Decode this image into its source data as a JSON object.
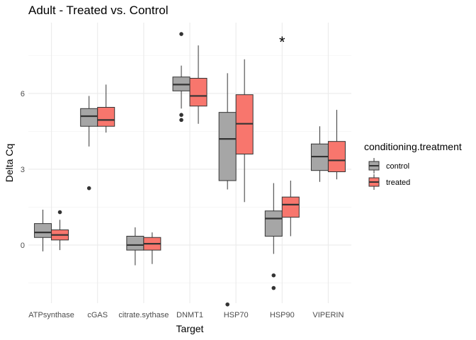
{
  "chart_data": {
    "type": "boxplot",
    "title": "Adult - Treated vs. Control",
    "xlabel": "Target",
    "ylabel": "Delta Cq",
    "categories": [
      "ATPsynthase",
      "cGAS",
      "citrate.sythase",
      "DNMT1",
      "HSP70",
      "HSP90",
      "VIPERIN"
    ],
    "yticks": [
      0,
      3,
      6
    ],
    "ylim": [
      -2.3,
      8.8
    ],
    "grid": true,
    "legend": {
      "title": "conditioning.treatment",
      "position": "right",
      "entries": [
        "control",
        "treated"
      ]
    },
    "series": [
      {
        "name": "control",
        "color": "#a6a6a6",
        "boxes": [
          {
            "q1": 0.3,
            "median": 0.5,
            "q3": 0.85,
            "whisker_low": -0.25,
            "whisker_high": 1.4,
            "outliers": []
          },
          {
            "q1": 4.7,
            "median": 5.1,
            "q3": 5.4,
            "whisker_low": 3.9,
            "whisker_high": 5.9,
            "outliers": [
              2.25
            ]
          },
          {
            "q1": -0.2,
            "median": 0.0,
            "q3": 0.35,
            "whisker_low": -0.8,
            "whisker_high": 0.7,
            "outliers": []
          },
          {
            "q1": 6.1,
            "median": 6.35,
            "q3": 6.65,
            "whisker_low": 5.4,
            "whisker_high": 7.1,
            "outliers": [
              8.35,
              5.15,
              4.95
            ]
          },
          {
            "q1": 2.55,
            "median": 4.2,
            "q3": 5.25,
            "whisker_low": 2.2,
            "whisker_high": 6.8,
            "outliers": [
              -2.35
            ]
          },
          {
            "q1": 0.35,
            "median": 1.05,
            "q3": 1.35,
            "whisker_low": -0.35,
            "whisker_high": 2.45,
            "outliers": [
              -1.2,
              -1.7
            ]
          },
          {
            "q1": 2.95,
            "median": 3.5,
            "q3": 4.0,
            "whisker_low": 2.5,
            "whisker_high": 4.7,
            "outliers": []
          }
        ]
      },
      {
        "name": "treated",
        "color": "#f8766d",
        "boxes": [
          {
            "q1": 0.2,
            "median": 0.4,
            "q3": 0.6,
            "whisker_low": -0.2,
            "whisker_high": 1.0,
            "outliers": [
              1.3
            ]
          },
          {
            "q1": 4.7,
            "median": 4.95,
            "q3": 5.45,
            "whisker_low": 4.45,
            "whisker_high": 6.35,
            "outliers": []
          },
          {
            "q1": -0.2,
            "median": 0.05,
            "q3": 0.3,
            "whisker_low": -0.75,
            "whisker_high": 0.5,
            "outliers": []
          },
          {
            "q1": 5.5,
            "median": 5.9,
            "q3": 6.6,
            "whisker_low": 4.8,
            "whisker_high": 7.9,
            "outliers": []
          },
          {
            "q1": 3.6,
            "median": 4.8,
            "q3": 5.95,
            "whisker_low": 1.7,
            "whisker_high": 7.35,
            "outliers": []
          },
          {
            "q1": 1.1,
            "median": 1.6,
            "q3": 1.9,
            "whisker_low": 0.35,
            "whisker_high": 2.55,
            "outliers": []
          },
          {
            "q1": 2.9,
            "median": 3.35,
            "q3": 4.1,
            "whisker_low": 2.6,
            "whisker_high": 5.35,
            "outliers": []
          }
        ]
      }
    ],
    "annotations": [
      {
        "text": "*",
        "category": "HSP90",
        "y": 8.1
      }
    ]
  }
}
